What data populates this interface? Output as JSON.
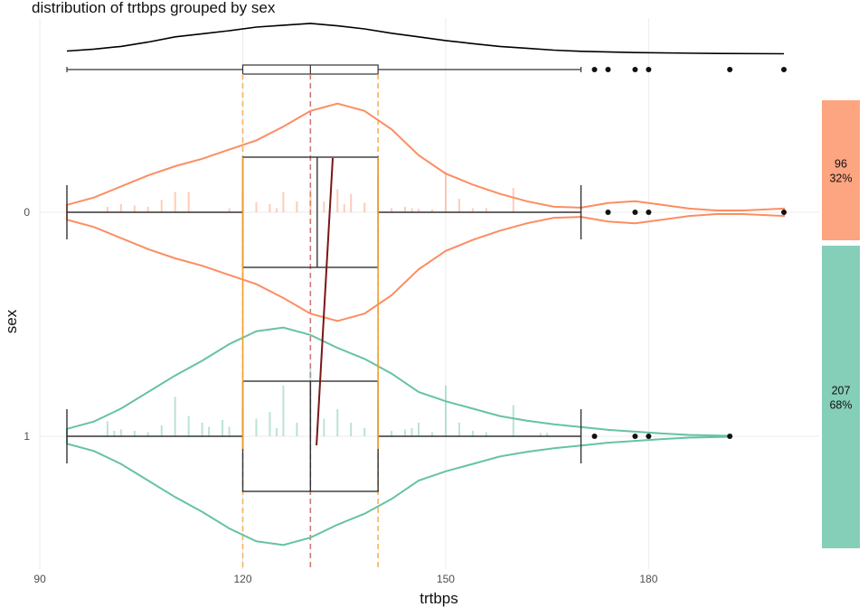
{
  "chart_data": {
    "type": "violin",
    "title": "distribution of trtbps grouped by sex",
    "xlabel": "trtbps",
    "ylabel": "sex",
    "xlim": [
      88,
      206
    ],
    "x_ticks": [
      90,
      120,
      150,
      180
    ],
    "grid": true,
    "overall": {
      "density_x": [
        94,
        98,
        102,
        106,
        110,
        114,
        118,
        122,
        126,
        130,
        134,
        138,
        142,
        146,
        150,
        154,
        158,
        162,
        166,
        170,
        178,
        190,
        200
      ],
      "density_y": [
        0.28,
        0.34,
        0.43,
        0.57,
        0.74,
        0.84,
        0.94,
        1.06,
        1.12,
        1.18,
        1.1,
        1.0,
        0.86,
        0.74,
        0.62,
        0.52,
        0.43,
        0.37,
        0.31,
        0.27,
        0.23,
        0.2,
        0.19
      ],
      "box": {
        "min": 94,
        "q1": 120,
        "median": 130,
        "q3": 140,
        "max": 170
      },
      "outliers": [
        172,
        174,
        178,
        180,
        192,
        200
      ]
    },
    "series": [
      {
        "name": "0",
        "color": "#fc8d62",
        "count": "96",
        "percent": "32%",
        "mean": 133.3,
        "box": {
          "min": 94,
          "q1": 120,
          "median": 131,
          "q3": 140,
          "max": 170
        },
        "outliers": [
          174,
          178,
          180,
          200
        ],
        "density_x": [
          94,
          98,
          102,
          106,
          110,
          114,
          118,
          122,
          126,
          130,
          134,
          138,
          142,
          146,
          150,
          154,
          158,
          162,
          166,
          170,
          174,
          178,
          182,
          186,
          190,
          194,
          200
        ],
        "density_y": [
          0.08,
          0.16,
          0.28,
          0.4,
          0.5,
          0.58,
          0.68,
          0.78,
          0.93,
          1.1,
          1.18,
          1.1,
          0.9,
          0.62,
          0.42,
          0.3,
          0.2,
          0.12,
          0.06,
          0.05,
          0.1,
          0.12,
          0.08,
          0.04,
          0.02,
          0.02,
          0.04
        ],
        "rug_x": [
          100,
          102,
          104,
          106,
          108,
          110,
          112,
          118,
          120,
          122,
          124,
          125,
          126,
          128,
          130,
          132,
          134,
          135,
          136,
          138,
          140,
          142,
          144,
          145,
          146,
          148,
          150,
          152,
          154,
          156,
          160
        ],
        "rug_h": [
          0.08,
          0.12,
          0.1,
          0.08,
          0.18,
          0.3,
          0.3,
          0.06,
          0.3,
          0.15,
          0.12,
          0.06,
          0.3,
          0.16,
          0.34,
          0.16,
          0.34,
          0.12,
          0.27,
          0.14,
          0.52,
          0.06,
          0.08,
          0.06,
          0.05,
          0.04,
          0.6,
          0.2,
          0.06,
          0.06,
          0.36
        ]
      },
      {
        "name": "1",
        "color": "#66c2a5",
        "count": "207",
        "percent": "68%",
        "mean": 130.9,
        "box": {
          "min": 94,
          "q1": 120,
          "median": 130,
          "q3": 140,
          "max": 170
        },
        "outliers": [
          172,
          178,
          180,
          192
        ],
        "density_x": [
          94,
          98,
          102,
          106,
          110,
          114,
          118,
          122,
          126,
          130,
          134,
          138,
          142,
          146,
          150,
          154,
          158,
          162,
          166,
          170,
          174,
          178,
          182,
          186,
          192
        ],
        "density_y": [
          0.08,
          0.16,
          0.3,
          0.48,
          0.66,
          0.82,
          1.0,
          1.14,
          1.18,
          1.1,
          0.96,
          0.84,
          0.68,
          0.48,
          0.38,
          0.3,
          0.22,
          0.17,
          0.13,
          0.1,
          0.07,
          0.05,
          0.03,
          0.015,
          0.005
        ],
        "rug_x": [
          100,
          101,
          102,
          104,
          106,
          108,
          110,
          112,
          114,
          115,
          117,
          118,
          120,
          122,
          124,
          125,
          126,
          128,
          130,
          132,
          134,
          136,
          138,
          140,
          142,
          144,
          145,
          146,
          148,
          150,
          152,
          154,
          156,
          160,
          164,
          165
        ],
        "rug_h": [
          0.22,
          0.08,
          0.1,
          0.08,
          0.06,
          0.16,
          0.58,
          0.3,
          0.2,
          0.14,
          0.24,
          0.14,
          0.44,
          0.26,
          0.36,
          0.12,
          0.75,
          0.2,
          1.0,
          0.26,
          0.4,
          0.2,
          0.12,
          0.52,
          0.08,
          0.1,
          0.12,
          0.2,
          0.06,
          0.75,
          0.2,
          0.08,
          0.06,
          0.46,
          0.05,
          0.05
        ]
      }
    ]
  }
}
